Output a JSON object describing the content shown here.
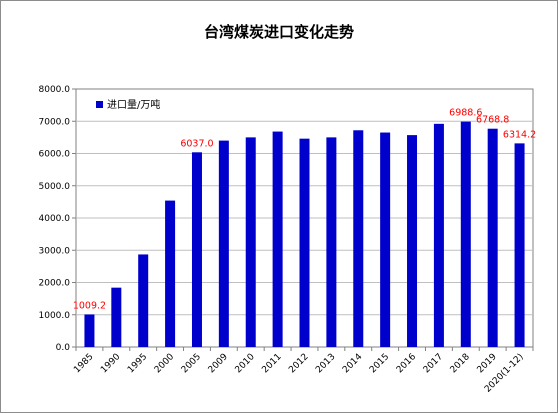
{
  "chart_data": {
    "type": "bar",
    "title": "台湾煤炭进口变化走势",
    "categories": [
      "1985",
      "1990",
      "1995",
      "2000",
      "2005",
      "2009",
      "2010",
      "2011",
      "2012",
      "2013",
      "2014",
      "2015",
      "2016",
      "2017",
      "2018",
      "2019",
      "2020(1-12)"
    ],
    "series": [
      {
        "name": "进口量/万吨",
        "values": [
          1009.2,
          1840,
          2870,
          4540,
          6037.0,
          6400,
          6500,
          6680,
          6460,
          6500,
          6720,
          6650,
          6570,
          6920,
          6988.6,
          6768.8,
          6314.2
        ],
        "color": "#0000cc"
      }
    ],
    "data_labels": [
      {
        "category": "1985",
        "text": "1009.2"
      },
      {
        "category": "2005",
        "text": "6037.0"
      },
      {
        "category": "2018",
        "text": "6988.6"
      },
      {
        "category": "2019",
        "text": "6768.8"
      },
      {
        "category": "2020(1-12)",
        "text": "6314.2"
      }
    ],
    "yticks": [
      "0.0",
      "1000.0",
      "2000.0",
      "3000.0",
      "4000.0",
      "5000.0",
      "6000.0",
      "7000.0",
      "8000.0"
    ],
    "ylim": [
      0,
      8000
    ],
    "grid": true,
    "legend": "top-left",
    "label_color": "#ff0000"
  }
}
